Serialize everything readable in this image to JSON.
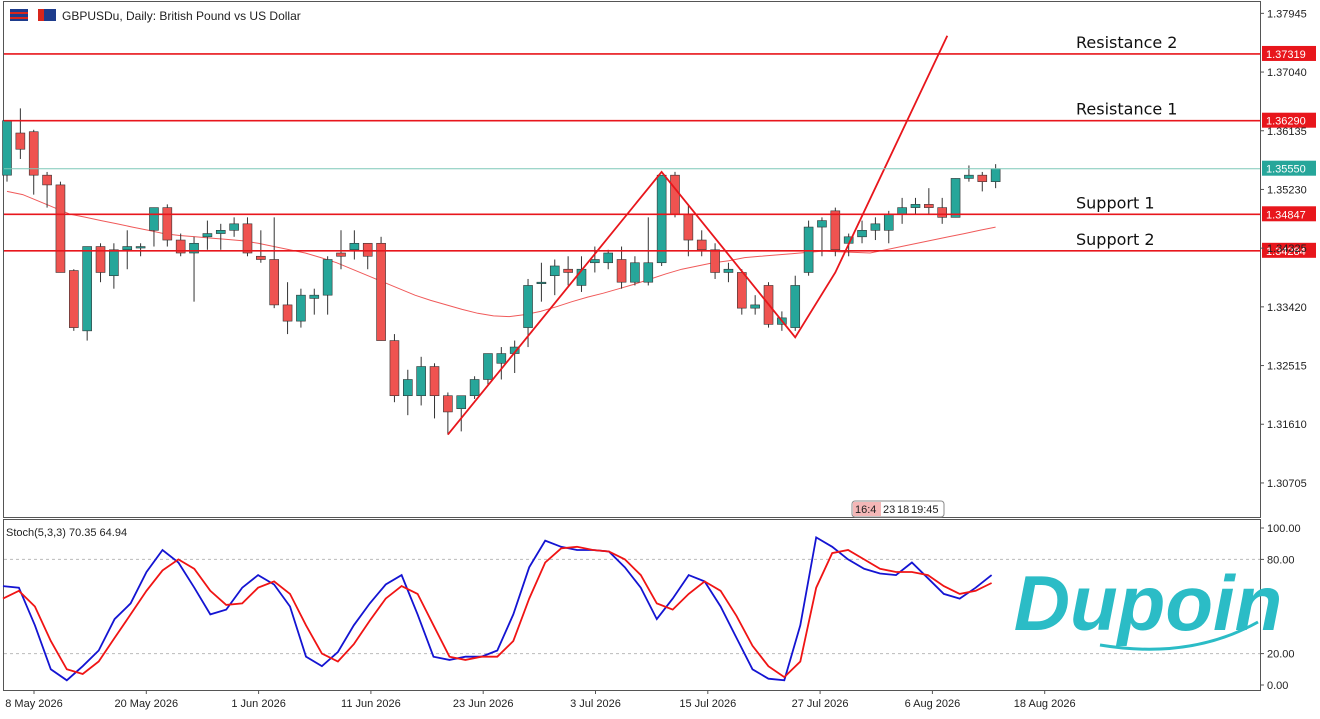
{
  "header": {
    "symbol_line": "GBPUSDu, Daily:  British Pound vs US Dollar"
  },
  "colors": {
    "bull": "#26a69a",
    "bear": "#ef5350",
    "level_line": "#e8161c",
    "ma_line": "#f05a5a",
    "stoch_k": "#1414d2",
    "stoch_d": "#f01414",
    "bid_line": "#7fc8b8",
    "logo": "#2bbcc6"
  },
  "logo": {
    "text": "Dupoin"
  },
  "time_badges": [
    "16:4",
    "23",
    "18",
    "19:45"
  ],
  "chart_data": [
    {
      "type": "candlestick",
      "title": "GBPUSDu, Daily:  British Pound vs US Dollar",
      "ylim": [
        1.3018,
        1.3812
      ],
      "y_ticks": [
        "1.37945",
        "1.37040",
        "1.36135",
        "1.35230",
        "1.34325",
        "1.33420",
        "1.32515",
        "1.31610",
        "1.30705"
      ],
      "x_ticks": [
        "8 May 2026",
        "20 May 2026",
        "1 Jun 2026",
        "11 Jun 2026",
        "23 Jun 2026",
        "3 Jul 2026",
        "15 Jul 2026",
        "27 Jul 2026",
        "6 Aug 2026",
        "18 Aug 2026"
      ],
      "bid_price": "1.35550",
      "levels": [
        {
          "name": "Resistance 2",
          "price": "1.37319"
        },
        {
          "name": "Resistance 1",
          "price": "1.36290"
        },
        {
          "name": "Support 1",
          "price": "1.34847"
        },
        {
          "name": "Support 2",
          "price": "1.34284"
        }
      ],
      "candles": [
        [
          1.3545,
          1.3629,
          1.3535,
          1.3629
        ],
        [
          1.361,
          1.3648,
          1.357,
          1.3585
        ],
        [
          1.3612,
          1.3615,
          1.3515,
          1.3545
        ],
        [
          1.3545,
          1.355,
          1.3495,
          1.353
        ],
        [
          1.353,
          1.3535,
          1.3395,
          1.3395
        ],
        [
          1.3398,
          1.34,
          1.3305,
          1.331
        ],
        [
          1.3305,
          1.3435,
          1.329,
          1.3435
        ],
        [
          1.3435,
          1.344,
          1.338,
          1.3395
        ],
        [
          1.339,
          1.344,
          1.337,
          1.343
        ],
        [
          1.343,
          1.346,
          1.34,
          1.3435
        ],
        [
          1.3435,
          1.344,
          1.342,
          1.3435
        ],
        [
          1.346,
          1.3495,
          1.3435,
          1.3495
        ],
        [
          1.3495,
          1.35,
          1.3435,
          1.3445
        ],
        [
          1.3445,
          1.3455,
          1.342,
          1.3425
        ],
        [
          1.3425,
          1.345,
          1.335,
          1.344
        ],
        [
          1.345,
          1.3475,
          1.343,
          1.3455
        ],
        [
          1.3455,
          1.347,
          1.343,
          1.346
        ],
        [
          1.346,
          1.348,
          1.345,
          1.347
        ],
        [
          1.347,
          1.348,
          1.342,
          1.3425
        ],
        [
          1.342,
          1.346,
          1.341,
          1.3415
        ],
        [
          1.3415,
          1.348,
          1.334,
          1.3345
        ],
        [
          1.3345,
          1.338,
          1.33,
          1.332
        ],
        [
          1.332,
          1.337,
          1.331,
          1.336
        ],
        [
          1.3355,
          1.337,
          1.333,
          1.336
        ],
        [
          1.336,
          1.342,
          1.333,
          1.3415
        ],
        [
          1.3425,
          1.346,
          1.34,
          1.342
        ],
        [
          1.343,
          1.346,
          1.3415,
          1.344
        ],
        [
          1.344,
          1.344,
          1.34,
          1.342
        ],
        [
          1.344,
          1.345,
          1.329,
          1.329
        ],
        [
          1.329,
          1.33,
          1.3195,
          1.3205
        ],
        [
          1.3205,
          1.3245,
          1.3175,
          1.323
        ],
        [
          1.3205,
          1.3265,
          1.319,
          1.325
        ],
        [
          1.325,
          1.3255,
          1.317,
          1.3205
        ],
        [
          1.3205,
          1.321,
          1.3145,
          1.318
        ],
        [
          1.3185,
          1.3205,
          1.315,
          1.3205
        ],
        [
          1.3205,
          1.3235,
          1.32,
          1.323
        ],
        [
          1.323,
          1.327,
          1.322,
          1.327
        ],
        [
          1.3255,
          1.328,
          1.323,
          1.327
        ],
        [
          1.327,
          1.329,
          1.324,
          1.328
        ],
        [
          1.331,
          1.3385,
          1.328,
          1.3375
        ],
        [
          1.338,
          1.341,
          1.335,
          1.338
        ],
        [
          1.339,
          1.3415,
          1.336,
          1.3405
        ],
        [
          1.34,
          1.342,
          1.3375,
          1.3395
        ],
        [
          1.3375,
          1.342,
          1.3365,
          1.34
        ],
        [
          1.341,
          1.3435,
          1.3395,
          1.3415
        ],
        [
          1.341,
          1.343,
          1.34,
          1.3425
        ],
        [
          1.3415,
          1.3435,
          1.337,
          1.338
        ],
        [
          1.338,
          1.342,
          1.3375,
          1.341
        ],
        [
          1.338,
          1.348,
          1.3375,
          1.341
        ],
        [
          1.341,
          1.3545,
          1.3405,
          1.3545
        ],
        [
          1.3545,
          1.355,
          1.348,
          1.3485
        ],
        [
          1.3485,
          1.35,
          1.342,
          1.3445
        ],
        [
          1.3445,
          1.346,
          1.342,
          1.343
        ],
        [
          1.343,
          1.344,
          1.3385,
          1.3395
        ],
        [
          1.3395,
          1.341,
          1.338,
          1.34
        ],
        [
          1.3395,
          1.34,
          1.333,
          1.334
        ],
        [
          1.334,
          1.336,
          1.333,
          1.3345
        ],
        [
          1.3375,
          1.338,
          1.331,
          1.3315
        ],
        [
          1.3315,
          1.3335,
          1.3305,
          1.3325
        ],
        [
          1.331,
          1.339,
          1.3305,
          1.3375
        ],
        [
          1.3395,
          1.3475,
          1.339,
          1.3465
        ],
        [
          1.3465,
          1.348,
          1.342,
          1.3475
        ],
        [
          1.349,
          1.3495,
          1.342,
          1.343
        ],
        [
          1.344,
          1.3455,
          1.342,
          1.345
        ],
        [
          1.345,
          1.3475,
          1.344,
          1.346
        ],
        [
          1.346,
          1.348,
          1.3445,
          1.347
        ],
        [
          1.346,
          1.349,
          1.344,
          1.3485
        ],
        [
          1.3485,
          1.351,
          1.347,
          1.3495
        ],
        [
          1.3495,
          1.351,
          1.3485,
          1.35
        ],
        [
          1.35,
          1.3525,
          1.3485,
          1.3495
        ],
        [
          1.3495,
          1.351,
          1.347,
          1.348
        ],
        [
          1.348,
          1.354,
          1.348,
          1.354
        ],
        [
          1.354,
          1.356,
          1.3535,
          1.3545
        ],
        [
          1.3545,
          1.355,
          1.352,
          1.3535
        ],
        [
          1.3535,
          1.3562,
          1.3525,
          1.3555
        ]
      ],
      "ma": [
        1.352,
        1.3515,
        1.3505,
        1.3495,
        1.3485,
        1.348,
        1.3475,
        1.347,
        1.3465,
        1.346,
        1.3455,
        1.3452,
        1.345,
        1.3448,
        1.3446,
        1.3444,
        1.344,
        1.3435,
        1.343,
        1.3425,
        1.3418,
        1.341,
        1.34,
        1.339,
        1.338,
        1.337,
        1.336,
        1.3352,
        1.3345,
        1.3338,
        1.3332,
        1.3328,
        1.3327,
        1.333,
        1.3335,
        1.3342,
        1.335,
        1.3357,
        1.3363,
        1.337,
        1.3377,
        1.3385,
        1.3393,
        1.34,
        1.3405,
        1.341,
        1.3413,
        1.3418,
        1.342,
        1.3422,
        1.3424,
        1.3426,
        1.3428,
        1.3427,
        1.3426,
        1.3425,
        1.343,
        1.3435,
        1.344,
        1.3445,
        1.345,
        1.3455,
        1.346,
        1.3465
      ]
    },
    {
      "type": "line",
      "title": "Stoch(5,3,3) 70.35 64.94",
      "ylim": [
        0,
        100
      ],
      "y_ticks": [
        "100.00",
        "80.00",
        "20.00",
        "0.00"
      ],
      "series": [
        {
          "values": [
            63,
            62,
            38,
            10,
            3,
            12,
            22,
            42,
            52,
            72,
            86,
            78,
            62,
            45,
            48,
            62,
            70,
            64,
            50,
            18,
            12,
            21,
            38,
            52,
            64,
            70,
            45,
            18,
            16,
            18,
            18,
            22,
            45,
            75,
            92,
            88,
            86,
            86,
            85,
            75,
            62,
            42,
            55,
            70,
            66,
            50,
            30,
            10,
            4,
            3,
            38,
            94,
            88,
            80,
            74,
            71,
            70,
            78,
            68,
            58,
            55,
            62,
            70
          ]
        },
        {
          "values": [
            55,
            60,
            50,
            28,
            10,
            7,
            15,
            30,
            45,
            60,
            73,
            80,
            74,
            60,
            51,
            52,
            62,
            66,
            58,
            38,
            20,
            15,
            26,
            41,
            55,
            63,
            58,
            38,
            18,
            16,
            18,
            18,
            28,
            55,
            78,
            87,
            88,
            86,
            85,
            80,
            70,
            52,
            48,
            58,
            66,
            60,
            44,
            25,
            12,
            5,
            15,
            62,
            84,
            86,
            80,
            74,
            72,
            72,
            70,
            63,
            58,
            60,
            65
          ]
        }
      ]
    }
  ]
}
